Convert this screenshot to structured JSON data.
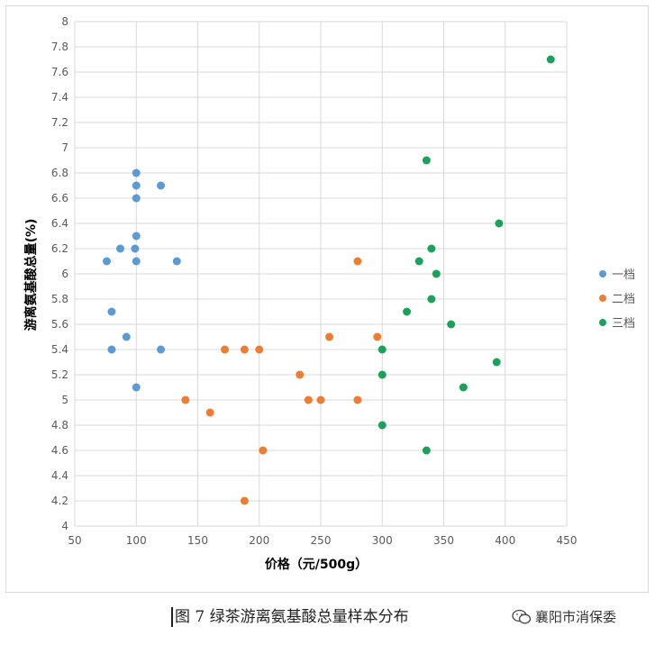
{
  "chart_data": {
    "type": "scatter",
    "title": "",
    "xlabel": "价格（元/500g）",
    "ylabel": "游离氨基酸总量(%)",
    "xlim": [
      50,
      450
    ],
    "ylim": [
      4,
      8
    ],
    "x_ticks": [
      "50",
      "100",
      "150",
      "200",
      "250",
      "300",
      "350",
      "400",
      "450"
    ],
    "y_ticks": [
      "4",
      "4.2",
      "4.4",
      "4.6",
      "4.8",
      "5",
      "5.2",
      "5.4",
      "5.6",
      "5.8",
      "6",
      "6.2",
      "6.4",
      "6.6",
      "6.8",
      "7",
      "7.2",
      "7.4",
      "7.6",
      "7.8",
      "8"
    ],
    "grid": true,
    "legend_position": "right",
    "series": [
      {
        "name": "一档",
        "color": "#5b9bd5",
        "points": [
          [
            100,
            6.8
          ],
          [
            100,
            6.7
          ],
          [
            120,
            6.7
          ],
          [
            100,
            6.6
          ],
          [
            100,
            6.3
          ],
          [
            87,
            6.2
          ],
          [
            99,
            6.2
          ],
          [
            76,
            6.1
          ],
          [
            100,
            6.1
          ],
          [
            133,
            6.1
          ],
          [
            80,
            5.7
          ],
          [
            92,
            5.5
          ],
          [
            80,
            5.4
          ],
          [
            120,
            5.4
          ],
          [
            100,
            5.1
          ]
        ]
      },
      {
        "name": "二档",
        "color": "#ed7d31",
        "points": [
          [
            280,
            6.1
          ],
          [
            257,
            5.5
          ],
          [
            296,
            5.5
          ],
          [
            172,
            5.4
          ],
          [
            188,
            5.4
          ],
          [
            200,
            5.4
          ],
          [
            233,
            5.2
          ],
          [
            140,
            5.0
          ],
          [
            240,
            5.0
          ],
          [
            250,
            5.0
          ],
          [
            280,
            5.0
          ],
          [
            160,
            4.9
          ],
          [
            203,
            4.6
          ],
          [
            188,
            4.2
          ]
        ]
      },
      {
        "name": "三档",
        "color": "#1aa15a",
        "points": [
          [
            437,
            7.7
          ],
          [
            336,
            6.9
          ],
          [
            395,
            6.4
          ],
          [
            340,
            6.2
          ],
          [
            330,
            6.1
          ],
          [
            344,
            6.0
          ],
          [
            340,
            5.8
          ],
          [
            320,
            5.7
          ],
          [
            356,
            5.6
          ],
          [
            300,
            5.4
          ],
          [
            393,
            5.3
          ],
          [
            300,
            5.2
          ],
          [
            366,
            5.1
          ],
          [
            300,
            4.8
          ],
          [
            336,
            4.6
          ]
        ]
      }
    ]
  },
  "caption": "图 7  绿茶游离氨基酸总量样本分布",
  "watermark": {
    "icon": "wechat-icon",
    "text": "襄阳市消保委"
  }
}
